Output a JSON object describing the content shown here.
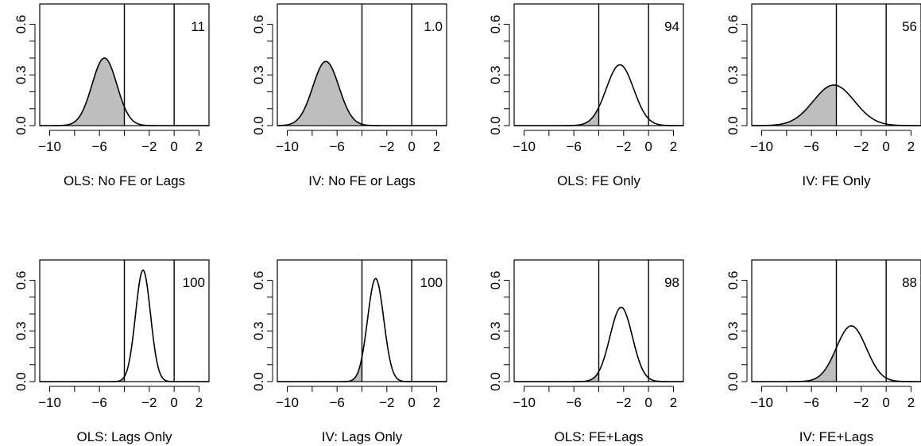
{
  "chart_data": [
    {
      "type": "area",
      "xlabel": "OLS: No FE or Lags",
      "annotation": "11",
      "density": {
        "mean": -5.6,
        "sd": 1.0,
        "peak": 0.4
      },
      "shade_below": -4.0,
      "threshold": -4.0,
      "zero_line": 0,
      "xlim": [
        -10.8,
        2.8
      ],
      "ylim": [
        0,
        0.72
      ],
      "xticks": [
        -10,
        -6,
        -2,
        0,
        2
      ],
      "yticks": [
        0.0,
        0.3,
        0.6
      ],
      "xtick_labels": [
        "−10",
        "−6",
        "−2",
        "0",
        "2"
      ],
      "ytick_labels": [
        "0.0",
        "0.3",
        "0.6"
      ],
      "minor_xticks": [
        -8,
        -4
      ]
    },
    {
      "type": "area",
      "xlabel": "IV: No FE or Lags",
      "annotation": "1.0",
      "density": {
        "mean": -6.9,
        "sd": 1.05,
        "peak": 0.38
      },
      "shade_below": -4.0,
      "threshold": -4.0,
      "zero_line": 0,
      "xlim": [
        -10.8,
        2.8
      ],
      "ylim": [
        0,
        0.72
      ],
      "xticks": [
        -10,
        -6,
        -2,
        0,
        2
      ],
      "yticks": [
        0.0,
        0.3,
        0.6
      ],
      "xtick_labels": [
        "−10",
        "−6",
        "−2",
        "0",
        "2"
      ],
      "ytick_labels": [
        "0.0",
        "0.3",
        "0.6"
      ],
      "minor_xticks": [
        -8,
        -4
      ]
    },
    {
      "type": "area",
      "xlabel": "OLS: FE Only",
      "annotation": "94",
      "density": {
        "mean": -2.3,
        "sd": 1.1,
        "peak": 0.36
      },
      "shade_below": -4.0,
      "threshold": -4.0,
      "zero_line": 0,
      "xlim": [
        -10.8,
        2.8
      ],
      "ylim": [
        0,
        0.72
      ],
      "xticks": [
        -10,
        -6,
        -2,
        0,
        2
      ],
      "yticks": [
        0.0,
        0.3,
        0.6
      ],
      "xtick_labels": [
        "−10",
        "−6",
        "−2",
        "0",
        "2"
      ],
      "ytick_labels": [
        "0.0",
        "0.3",
        "0.6"
      ],
      "minor_xticks": [
        -8,
        -4
      ]
    },
    {
      "type": "area",
      "xlabel": "IV: FE Only",
      "annotation": "56",
      "density": {
        "mean": -4.2,
        "sd": 1.65,
        "peak": 0.24
      },
      "shade_below": -4.0,
      "threshold": -4.0,
      "zero_line": 0,
      "xlim": [
        -10.8,
        2.8
      ],
      "ylim": [
        0,
        0.72
      ],
      "xticks": [
        -10,
        -6,
        -2,
        0,
        2
      ],
      "yticks": [
        0.0,
        0.3,
        0.6
      ],
      "xtick_labels": [
        "−10",
        "−6",
        "−2",
        "0",
        "2"
      ],
      "ytick_labels": [
        "0.0",
        "0.3",
        "0.6"
      ],
      "minor_xticks": [
        -8,
        -4
      ]
    },
    {
      "type": "area",
      "xlabel": "OLS: Lags Only",
      "annotation": "100",
      "density": {
        "mean": -2.5,
        "sd": 0.6,
        "peak": 0.66
      },
      "shade_below": -4.0,
      "threshold": -4.0,
      "zero_line": 0,
      "xlim": [
        -10.8,
        2.8
      ],
      "ylim": [
        0,
        0.72
      ],
      "xticks": [
        -10,
        -6,
        -2,
        0,
        2
      ],
      "yticks": [
        0.0,
        0.3,
        0.6
      ],
      "xtick_labels": [
        "−10",
        "−6",
        "−2",
        "0",
        "2"
      ],
      "ytick_labels": [
        "0.0",
        "0.3",
        "0.6"
      ],
      "minor_xticks": [
        -8,
        -4
      ]
    },
    {
      "type": "area",
      "xlabel": "IV: Lags Only",
      "annotation": "100",
      "density": {
        "mean": -2.9,
        "sd": 0.65,
        "peak": 0.61
      },
      "shade_below": -4.0,
      "threshold": -4.0,
      "zero_line": 0,
      "xlim": [
        -10.8,
        2.8
      ],
      "ylim": [
        0,
        0.72
      ],
      "xticks": [
        -10,
        -6,
        -2,
        0,
        2
      ],
      "yticks": [
        0.0,
        0.3,
        0.6
      ],
      "xtick_labels": [
        "−10",
        "−6",
        "−2",
        "0",
        "2"
      ],
      "ytick_labels": [
        "0.0",
        "0.3",
        "0.6"
      ],
      "minor_xticks": [
        -8,
        -4
      ]
    },
    {
      "type": "area",
      "xlabel": "OLS: FE+Lags",
      "annotation": "98",
      "density": {
        "mean": -2.2,
        "sd": 0.9,
        "peak": 0.44
      },
      "shade_below": -4.0,
      "threshold": -4.0,
      "zero_line": 0,
      "xlim": [
        -10.8,
        2.8
      ],
      "ylim": [
        0,
        0.72
      ],
      "xticks": [
        -10,
        -6,
        -2,
        0,
        2
      ],
      "yticks": [
        0.0,
        0.3,
        0.6
      ],
      "xtick_labels": [
        "−10",
        "−6",
        "−2",
        "0",
        "2"
      ],
      "ytick_labels": [
        "0.0",
        "0.3",
        "0.6"
      ],
      "minor_xticks": [
        -8,
        -4
      ]
    },
    {
      "type": "area",
      "xlabel": "IV: FE+Lags",
      "annotation": "88",
      "density": {
        "mean": -2.8,
        "sd": 1.2,
        "peak": 0.33
      },
      "shade_below": -4.0,
      "threshold": -4.0,
      "zero_line": 0,
      "xlim": [
        -10.8,
        2.8
      ],
      "ylim": [
        0,
        0.72
      ],
      "xticks": [
        -10,
        -6,
        -2,
        0,
        2
      ],
      "yticks": [
        0.0,
        0.3,
        0.6
      ],
      "xtick_labels": [
        "−10",
        "−6",
        "−2",
        "0",
        "2"
      ],
      "ytick_labels": [
        "0.0",
        "0.3",
        "0.6"
      ],
      "minor_xticks": [
        -8,
        -4
      ]
    }
  ],
  "colors": {
    "shade": "#bebebe",
    "line": "#000000",
    "background": "#ffffff"
  }
}
